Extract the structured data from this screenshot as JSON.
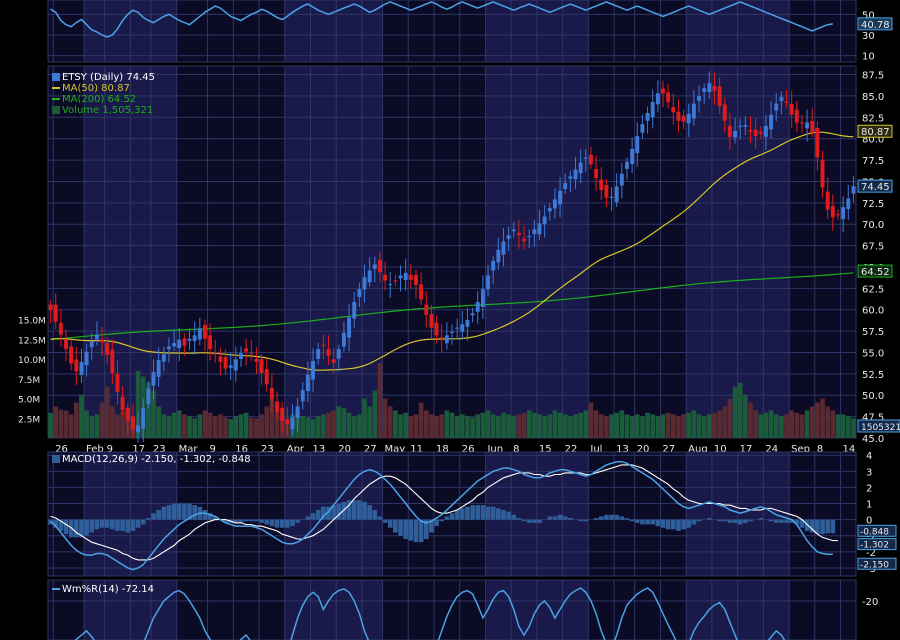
{
  "colors": {
    "background": "#000000",
    "panel": "#0b0b26",
    "stripe": "#1a1a4a",
    "grid": "#2f3566",
    "axis_text": "#e8e8e8",
    "up": "#3d79d6",
    "down": "#e01b1b",
    "ma50": "#d6c42a",
    "ma200": "#1bb01b",
    "volume_up": "#1c5a3c",
    "volume_down": "#5a2a32",
    "macd": "#4aa3e6",
    "signal": "#ffffff",
    "histogram": "#2f5f9a",
    "williams": "#4aa3e6",
    "rsi": "#4aa3e6"
  },
  "legend": {
    "price": "ETSY (Daily) 74.45",
    "ma50": "MA(50) 80.87",
    "ma200": "MA(200) 64.52",
    "volume": "Volume 1,505,321",
    "macd": "MACD(12,26,9) -2.150, -1.302, -0.848",
    "williams": "Wm%R(14) -72.14"
  },
  "chart_data": [
    {
      "type": "line",
      "panel": "rsi-top",
      "y_ticks": [
        "50",
        "30",
        "10"
      ],
      "last_value_label": "40.78",
      "values": [
        55,
        52,
        44,
        40,
        38,
        42,
        45,
        40,
        35,
        33,
        30,
        28,
        30,
        36,
        44,
        50,
        54,
        52,
        47,
        44,
        42,
        45,
        48,
        50,
        47,
        44,
        42,
        40,
        44,
        48,
        52,
        55,
        58,
        56,
        52,
        48,
        46,
        44,
        47,
        50,
        52,
        55,
        53,
        50,
        47,
        45,
        48,
        52,
        55,
        58,
        60,
        57,
        54,
        52,
        50,
        52,
        54,
        56,
        58,
        60,
        58,
        55,
        52,
        54,
        57,
        60,
        62,
        60,
        58,
        56,
        54,
        56,
        58,
        60,
        62,
        60,
        57,
        55,
        57,
        60,
        62,
        60,
        58,
        56,
        58,
        60,
        62,
        60,
        58,
        56,
        54,
        56,
        58,
        60,
        58,
        56,
        54,
        52,
        54,
        56,
        58,
        60,
        58,
        56,
        54,
        56,
        58,
        60,
        62,
        60,
        58,
        56,
        54,
        56,
        58,
        56,
        54,
        52,
        50,
        48,
        50,
        52,
        54,
        56,
        58,
        56,
        54,
        52,
        50,
        52,
        54,
        56,
        58,
        60,
        62,
        60,
        58,
        56,
        54,
        52,
        50,
        48,
        46,
        44,
        42,
        40,
        38,
        36,
        34,
        36,
        38,
        40,
        40.78
      ]
    },
    {
      "type": "candlestick",
      "panel": "price",
      "ticker": "ETSY",
      "y_ticks": [
        87.5,
        85.0,
        82.5,
        80.0,
        77.5,
        75.0,
        72.5,
        70.0,
        67.5,
        65.0,
        62.5,
        60.0,
        57.5,
        55.0,
        52.5,
        50.0,
        47.5,
        45.0
      ],
      "ylim": [
        45,
        88.5
      ],
      "last_price": 74.45,
      "ma50_last": 80.87,
      "ma200_last": 64.52,
      "x_ticks": [
        "26",
        "Feb",
        "9",
        "17",
        "23",
        "Mar",
        "9",
        "16",
        "23",
        "Apr",
        "13",
        "20",
        "27",
        "May",
        "11",
        "18",
        "26",
        "Jun",
        "8",
        "15",
        "22",
        "Jul",
        "13",
        "20",
        "27",
        "Aug",
        "10",
        "17",
        "24",
        "Sep",
        "8",
        "14"
      ],
      "month_shading": [
        "Feb",
        "Apr",
        "Jun",
        "Aug"
      ],
      "close": [
        60.0,
        58.6,
        57.1,
        55.4,
        53.7,
        52.8,
        53.9,
        55.1,
        56.3,
        57.1,
        56.2,
        54.7,
        52.6,
        50.4,
        48.3,
        47.0,
        46.0,
        46.5,
        48.5,
        50.8,
        52.7,
        54.1,
        54.8,
        55.7,
        56.1,
        56.5,
        55.8,
        56.6,
        57.0,
        57.8,
        56.6,
        55.4,
        54.8,
        53.9,
        53.1,
        53.5,
        54.2,
        54.9,
        55.1,
        54.8,
        53.9,
        52.6,
        51.3,
        49.6,
        48.0,
        47.0,
        46.6,
        47.4,
        48.7,
        50.6,
        52.4,
        54.0,
        55.4,
        55.8,
        54.6,
        53.8,
        55.4,
        57.3,
        59.1,
        60.9,
        62.4,
        63.8,
        64.6,
        65.3,
        64.4,
        63.4,
        63.0,
        63.3,
        64.0,
        64.3,
        63.5,
        62.9,
        61.2,
        59.4,
        57.9,
        57.0,
        56.6,
        57.0,
        57.4,
        57.9,
        58.3,
        58.8,
        59.6,
        60.9,
        62.4,
        64.0,
        65.7,
        67.0,
        68.0,
        68.7,
        69.4,
        68.7,
        68.0,
        68.6,
        69.4,
        70.1,
        70.9,
        71.9,
        72.9,
        73.9,
        74.8,
        75.6,
        76.4,
        77.2,
        77.8,
        77.0,
        75.4,
        74.0,
        73.1,
        73.2,
        74.4,
        75.9,
        77.3,
        78.8,
        80.3,
        81.7,
        83.0,
        84.3,
        85.3,
        85.3,
        84.3,
        83.1,
        82.1,
        82.0,
        82.9,
        84.1,
        85.0,
        85.9,
        86.5,
        85.6,
        83.8,
        82.1,
        80.2,
        80.9,
        81.5,
        81.6,
        80.8,
        80.3,
        80.6,
        81.5,
        82.8,
        84.1,
        84.9,
        84.2,
        82.8,
        81.9,
        81.8,
        81.9,
        80.7,
        77.8,
        74.3,
        71.7,
        70.8,
        71.1,
        72.0,
        73.0,
        74.45
      ],
      "volume_millions": [
        3.2,
        4.0,
        3.6,
        3.5,
        3.0,
        4.5,
        5.5,
        3.5,
        2.8,
        3.0,
        4.5,
        6.5,
        4.0,
        3.0,
        3.4,
        3.8,
        2.5,
        8.5,
        7.8,
        7.0,
        6.0,
        4.0,
        3.0,
        2.8,
        3.2,
        3.5,
        3.0,
        2.8,
        2.5,
        3.0,
        3.5,
        3.2,
        2.8,
        3.0,
        2.6,
        2.4,
        2.8,
        3.0,
        3.2,
        2.6,
        2.5,
        3.0,
        4.0,
        5.0,
        3.2,
        2.8,
        2.5,
        3.0,
        3.5,
        2.8,
        2.6,
        2.4,
        2.8,
        3.0,
        3.2,
        3.5,
        4.0,
        3.8,
        3.2,
        2.8,
        3.0,
        5.0,
        4.0,
        6.0,
        9.5,
        5.0,
        4.0,
        3.5,
        3.0,
        3.2,
        2.8,
        3.0,
        4.5,
        3.5,
        3.0,
        2.8,
        3.0,
        3.5,
        3.2,
        2.8,
        3.0,
        2.8,
        2.6,
        3.0,
        3.2,
        3.5,
        3.0,
        2.8,
        3.2,
        3.0,
        2.8,
        3.0,
        3.2,
        3.5,
        3.2,
        3.0,
        2.8,
        3.0,
        3.5,
        3.2,
        3.0,
        2.8,
        3.0,
        3.2,
        3.5,
        4.5,
        3.5,
        3.0,
        2.8,
        3.0,
        3.2,
        3.5,
        3.0,
        2.8,
        3.0,
        2.8,
        3.2,
        3.0,
        2.8,
        3.0,
        3.2,
        3.0,
        2.8,
        3.0,
        3.2,
        3.5,
        3.0,
        2.8,
        3.0,
        3.2,
        3.5,
        4.0,
        5.0,
        6.5,
        7.0,
        5.5,
        4.5,
        3.5,
        3.0,
        3.2,
        3.5,
        3.0,
        2.8,
        3.0,
        3.5,
        3.2,
        3.0,
        3.5,
        4.0,
        4.5,
        5.0,
        4.0,
        3.5,
        3.0,
        3.0,
        2.8,
        2.5
      ],
      "volume_axis_ticks": [
        "15.0M",
        "12.5M",
        "10.0M",
        "7.5M",
        "5.0M",
        "2.5M"
      ],
      "volume_last_label": "1505321"
    },
    {
      "type": "macd",
      "panel": "macd",
      "y_ticks": [
        4,
        3,
        2,
        1,
        0,
        -1,
        -2,
        -3
      ],
      "ylim": [
        -3.5,
        4.2
      ],
      "last_values": {
        "macd": -2.15,
        "signal": -1.302,
        "histogram": -0.848
      },
      "labels": [
        "-0.848",
        "-1.302",
        "-2.150"
      ],
      "macd": [
        -0.1,
        -0.4,
        -0.8,
        -1.2,
        -1.6,
        -1.9,
        -2.1,
        -2.2,
        -2.2,
        -2.1,
        -2.1,
        -2.2,
        -2.4,
        -2.6,
        -2.8,
        -3.0,
        -3.1,
        -3.0,
        -2.8,
        -2.4,
        -2.0,
        -1.6,
        -1.2,
        -0.9,
        -0.6,
        -0.3,
        -0.1,
        0.1,
        0.3,
        0.4,
        0.4,
        0.3,
        0.2,
        0.0,
        -0.2,
        -0.3,
        -0.4,
        -0.4,
        -0.4,
        -0.4,
        -0.5,
        -0.6,
        -0.8,
        -1.0,
        -1.2,
        -1.4,
        -1.5,
        -1.5,
        -1.4,
        -1.2,
        -0.9,
        -0.6,
        -0.2,
        0.2,
        0.5,
        0.9,
        1.3,
        1.7,
        2.1,
        2.5,
        2.8,
        3.0,
        3.1,
        3.0,
        2.8,
        2.5,
        2.2,
        1.8,
        1.4,
        1.0,
        0.6,
        0.2,
        -0.1,
        -0.2,
        -0.1,
        0.1,
        0.3,
        0.6,
        0.9,
        1.2,
        1.5,
        1.8,
        2.1,
        2.4,
        2.6,
        2.8,
        3.0,
        3.1,
        3.2,
        3.2,
        3.1,
        3.0,
        2.8,
        2.7,
        2.6,
        2.6,
        2.7,
        2.9,
        3.0,
        3.1,
        3.1,
        3.0,
        2.9,
        2.8,
        2.7,
        2.8,
        3.0,
        3.2,
        3.4,
        3.5,
        3.6,
        3.6,
        3.5,
        3.3,
        3.1,
        2.9,
        2.7,
        2.5,
        2.2,
        1.9,
        1.6,
        1.3,
        1.0,
        0.8,
        0.7,
        0.8,
        0.9,
        1.0,
        1.1,
        1.0,
        0.9,
        0.8,
        0.6,
        0.5,
        0.4,
        0.5,
        0.6,
        0.7,
        0.8,
        0.7,
        0.5,
        0.3,
        0.2,
        0.1,
        0.0,
        -0.3,
        -0.8,
        -1.3,
        -1.7,
        -2.0,
        -2.1,
        -2.15,
        -2.15
      ],
      "signal": [
        0.2,
        0.1,
        -0.1,
        -0.3,
        -0.5,
        -0.8,
        -1.0,
        -1.2,
        -1.4,
        -1.5,
        -1.6,
        -1.7,
        -1.8,
        -1.9,
        -2.1,
        -2.2,
        -2.4,
        -2.5,
        -2.5,
        -2.5,
        -2.4,
        -2.2,
        -2.0,
        -1.8,
        -1.6,
        -1.3,
        -1.1,
        -0.9,
        -0.6,
        -0.4,
        -0.2,
        -0.1,
        0.0,
        0.0,
        0.0,
        -0.1,
        -0.2,
        -0.2,
        -0.3,
        -0.3,
        -0.4,
        -0.4,
        -0.5,
        -0.6,
        -0.7,
        -0.9,
        -1.0,
        -1.1,
        -1.2,
        -1.2,
        -1.1,
        -1.0,
        -0.8,
        -0.6,
        -0.3,
        0.0,
        0.3,
        0.6,
        0.9,
        1.3,
        1.6,
        1.9,
        2.2,
        2.4,
        2.6,
        2.7,
        2.7,
        2.6,
        2.4,
        2.2,
        1.9,
        1.6,
        1.3,
        1.0,
        0.7,
        0.5,
        0.4,
        0.4,
        0.5,
        0.6,
        0.8,
        1.0,
        1.2,
        1.5,
        1.7,
        2.0,
        2.2,
        2.4,
        2.6,
        2.7,
        2.8,
        2.9,
        2.9,
        2.9,
        2.8,
        2.8,
        2.7,
        2.7,
        2.8,
        2.8,
        2.9,
        2.9,
        2.9,
        2.9,
        2.8,
        2.8,
        2.9,
        3.0,
        3.1,
        3.2,
        3.3,
        3.4,
        3.4,
        3.4,
        3.3,
        3.2,
        3.0,
        2.8,
        2.6,
        2.4,
        2.2,
        1.9,
        1.7,
        1.4,
        1.2,
        1.1,
        1.0,
        1.0,
        1.0,
        1.0,
        1.0,
        0.9,
        0.9,
        0.8,
        0.7,
        0.7,
        0.6,
        0.6,
        0.6,
        0.7,
        0.7,
        0.6,
        0.5,
        0.4,
        0.3,
        0.2,
        0.0,
        -0.3,
        -0.6,
        -0.9,
        -1.1,
        -1.2,
        -1.3,
        -1.302
      ],
      "histogram": [
        -0.3,
        -0.5,
        -0.7,
        -0.9,
        -1.1,
        -1.1,
        -1.1,
        -1.0,
        -0.8,
        -0.6,
        -0.5,
        -0.5,
        -0.6,
        -0.7,
        -0.7,
        -0.8,
        -0.7,
        -0.5,
        -0.3,
        0.1,
        0.4,
        0.6,
        0.8,
        0.9,
        1.0,
        1.0,
        1.0,
        1.0,
        0.9,
        0.8,
        0.6,
        0.4,
        0.2,
        0.0,
        -0.2,
        -0.2,
        -0.2,
        -0.2,
        -0.1,
        -0.1,
        -0.1,
        -0.2,
        -0.3,
        -0.4,
        -0.5,
        -0.5,
        -0.5,
        -0.4,
        -0.2,
        0.0,
        0.2,
        0.4,
        0.6,
        0.8,
        0.8,
        0.9,
        1.0,
        1.1,
        1.2,
        1.2,
        1.2,
        1.1,
        0.9,
        0.6,
        0.2,
        -0.2,
        -0.5,
        -0.8,
        -1.0,
        -1.2,
        -1.3,
        -1.4,
        -1.4,
        -1.2,
        -0.8,
        -0.4,
        -0.1,
        0.2,
        0.4,
        0.6,
        0.7,
        0.8,
        0.9,
        0.9,
        0.9,
        0.8,
        0.8,
        0.7,
        0.6,
        0.5,
        0.3,
        0.1,
        -0.1,
        -0.2,
        -0.2,
        -0.2,
        0.0,
        0.2,
        0.2,
        0.3,
        0.2,
        0.1,
        0.0,
        -0.1,
        -0.1,
        0.0,
        0.1,
        0.2,
        0.3,
        0.3,
        0.3,
        0.2,
        0.1,
        -0.1,
        -0.2,
        -0.3,
        -0.3,
        -0.3,
        -0.4,
        -0.5,
        -0.6,
        -0.6,
        -0.7,
        -0.6,
        -0.5,
        -0.3,
        -0.1,
        0.0,
        0.1,
        0.0,
        -0.1,
        -0.1,
        -0.2,
        -0.2,
        -0.3,
        -0.2,
        -0.1,
        0.0,
        0.1,
        0.0,
        -0.1,
        -0.2,
        -0.2,
        -0.2,
        -0.2,
        -0.3,
        -0.5,
        -0.7,
        -0.8,
        -0.9,
        -0.9,
        -0.85,
        -0.848
      ]
    },
    {
      "type": "line",
      "panel": "williams",
      "y_ticks": [
        "-20"
      ],
      "last_value": -72.14,
      "values": [
        -90,
        -85,
        -80,
        -75,
        -70,
        -65,
        -60,
        -55,
        -62,
        -70,
        -78,
        -85,
        -92,
        -95,
        -96,
        -92,
        -88,
        -80,
        -70,
        -55,
        -40,
        -30,
        -20,
        -15,
        -10,
        -8,
        -12,
        -20,
        -30,
        -40,
        -55,
        -65,
        -72,
        -80,
        -86,
        -84,
        -75,
        -65,
        -60,
        -68,
        -78,
        -85,
        -90,
        -94,
        -96,
        -92,
        -80,
        -60,
        -40,
        -25,
        -15,
        -10,
        -15,
        -30,
        -20,
        -12,
        -8,
        -6,
        -10,
        -20,
        -35,
        -55,
        -70,
        -85,
        -92,
        -94,
        -90,
        -80,
        -70,
        -75,
        -85,
        -92,
        -96,
        -95,
        -88,
        -72,
        -55,
        -38,
        -25,
        -15,
        -10,
        -8,
        -12,
        -25,
        -40,
        -30,
        -18,
        -10,
        -8,
        -15,
        -30,
        -50,
        -60,
        -50,
        -35,
        -25,
        -20,
        -28,
        -40,
        -30,
        -20,
        -12,
        -8,
        -5,
        -10,
        -20,
        -35,
        -55,
        -70,
        -75,
        -60,
        -40,
        -25,
        -18,
        -12,
        -8,
        -5,
        -10,
        -22,
        -35,
        -48,
        -60,
        -72,
        -80,
        -70,
        -55,
        -45,
        -38,
        -30,
        -25,
        -22,
        -30,
        -45,
        -60,
        -75,
        -85,
        -90,
        -86,
        -78,
        -70,
        -62,
        -55,
        -60,
        -70,
        -80,
        -88,
        -92,
        -94,
        -90,
        -85,
        -80,
        -75,
        -72.14
      ]
    }
  ]
}
